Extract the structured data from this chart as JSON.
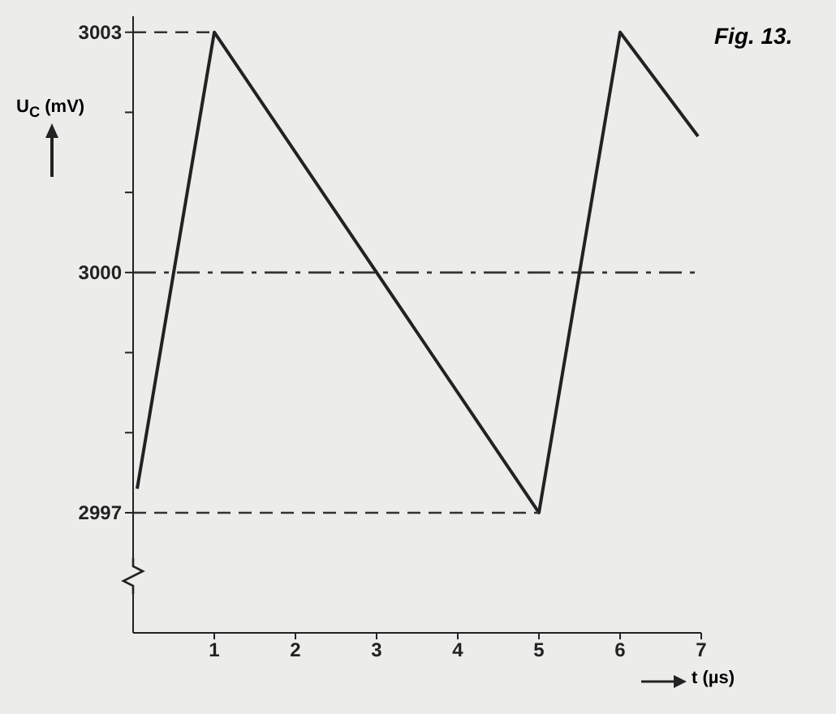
{
  "chart_data": {
    "type": "line",
    "title": "Fig. 13.",
    "xlabel": "t (µs)",
    "ylabel": "U$_{C}$ (mV)",
    "xlim": [
      0,
      7
    ],
    "xticks": [
      1,
      2,
      3,
      4,
      5,
      6,
      7
    ],
    "ylim": [
      2995.5,
      3003.2
    ],
    "yticks": [
      2997,
      {
        "value": 2998,
        "label": null
      },
      {
        "value": 2999,
        "label": null
      },
      3000,
      {
        "value": 3001,
        "label": null
      },
      {
        "value": 3002,
        "label": null
      },
      3003
    ],
    "marker": "none",
    "line_style": "solid",
    "series": [
      {
        "color": "#222222",
        "x": [
          0.05,
          1,
          5,
          6,
          6.96
        ],
        "values": [
          2997.3,
          3003,
          2997,
          3003,
          3001.7
        ]
      },
      {
        "color": "#333333",
        "type": "line",
        "line_style": "dashed",
        "x": [
          0,
          1
        ],
        "values": [
          3003,
          3003
        ]
      },
      {
        "color": "#333333",
        "type": "line",
        "line_style": "dashed",
        "x": [
          0,
          5
        ],
        "values": [
          2997,
          2997
        ]
      }
    ],
    "ref_lines": [
      {
        "axis": "y",
        "value": 3000,
        "color": "#333333",
        "line_style": "dashed"
      }
    ]
  }
}
